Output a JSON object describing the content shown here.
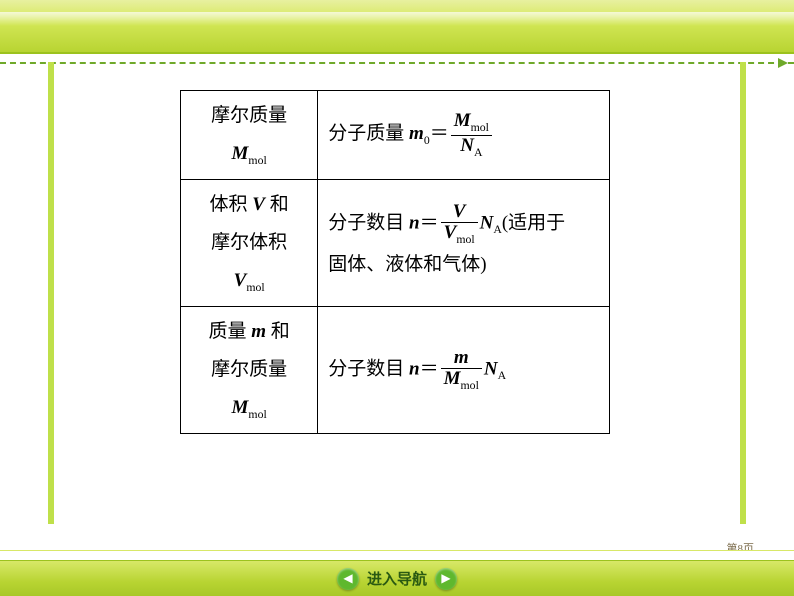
{
  "theme": {
    "accent": "#b8d432",
    "dash_color": "#6fa92a",
    "side_strip_color": "#bfe04a",
    "nav_btn_bg": "#5fb82e",
    "nav_label_color": "#2a5a12",
    "page_num_color": "#7a6a4a"
  },
  "table": {
    "rows": [
      {
        "left_line1": "摩尔质量",
        "left_var": "M",
        "left_sub": "mol",
        "right_prefix": "分子质量 ",
        "right_var": "m",
        "right_var_sub": "0",
        "eq": "＝",
        "frac_num_var": "M",
        "frac_num_sub": "mol",
        "frac_den_var": "N",
        "frac_den_sub": "A",
        "suffix": ""
      },
      {
        "left_line1": "体积 ",
        "left_line1_var": "V",
        "left_line1_tail": " 和",
        "left_line2": "摩尔体积",
        "left_var": "V",
        "left_sub": "mol",
        "right_prefix": "分子数目 ",
        "right_var": "n",
        "right_var_sub": "",
        "eq": "＝",
        "frac_num_var": "V",
        "frac_num_sub": "",
        "frac_den_var": "V",
        "frac_den_sub": "mol",
        "post_var": "N",
        "post_sub": "A",
        "suffix_open": "(适用于",
        "suffix_line2": "固体、液体和气体)"
      },
      {
        "left_line1": "质量 ",
        "left_line1_var": "m",
        "left_line1_tail": " 和",
        "left_line2": "摩尔质量",
        "left_var": "M",
        "left_sub": "mol",
        "right_prefix": "分子数目 ",
        "right_var": "n",
        "right_var_sub": "",
        "eq": "＝",
        "frac_num_var": "m",
        "frac_num_sub": "",
        "frac_den_var": "M",
        "frac_den_sub": "mol",
        "post_var": "N",
        "post_sub": "A",
        "suffix": ""
      }
    ]
  },
  "nav": {
    "label": "进入导航",
    "prev_glyph": "◀",
    "next_glyph": "▶"
  },
  "page_num": "第8页"
}
